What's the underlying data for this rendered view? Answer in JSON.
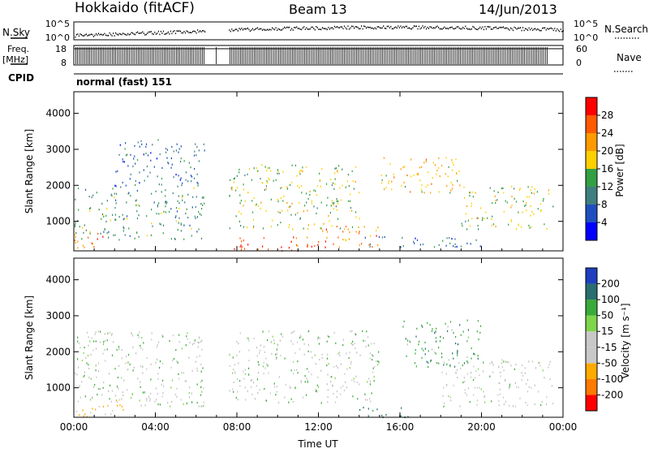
{
  "header": {
    "station": "Hokkaido (fitACF)",
    "beam": "Beam 13",
    "date": "14/Jun/2013"
  },
  "top_panels": {
    "nsky_label": "N.Sky",
    "nsky_ticks": [
      "10^5",
      "10^0"
    ],
    "nsearch_label": "N.Search",
    "nsearch_ticks": [
      "10^5",
      "10^0"
    ],
    "freq_label_line1": "Freq.",
    "freq_label_line2": "[MHz]",
    "freq_ticks": [
      "18",
      "8"
    ],
    "nave_label": "Nave",
    "nave_ticks": [
      "60",
      "0"
    ],
    "cpid_label": "CPID",
    "cpid_text": "normal (fast) 151"
  },
  "colors": {
    "power_scale": [
      "#0000ff",
      "#1f4fbf",
      "#3f7f7f",
      "#33a044",
      "#ffd000",
      "#ff9a00",
      "#ff5a00",
      "#ff0000"
    ],
    "velocity_scale": [
      "#ff0000",
      "#ff7a00",
      "#ffaa00",
      "#c8c8c8",
      "#c8c8c8",
      "#7ed64a",
      "#3aaa3a",
      "#2a6e70",
      "#1f3fbf"
    ],
    "ground_scatter": "#bfbfbf"
  },
  "chart_data": [
    {
      "type": "heatmap",
      "panel": "power",
      "ylabel": "Slant Range [km]",
      "xlabel": "",
      "x_tick_labels": [
        "00:00",
        "04:00",
        "08:00",
        "12:00",
        "16:00",
        "20:00",
        "00:00"
      ],
      "x_range_hours": [
        0,
        24
      ],
      "y_tick_labels": [
        "1000",
        "2000",
        "3000",
        "4000"
      ],
      "ylim": [
        180,
        4600
      ],
      "data_gap_hours": [
        [
          6.45,
          6.95
        ],
        [
          7.0,
          7.6
        ]
      ],
      "colorbar": {
        "label": "Power [dB]",
        "ticks": [
          "28",
          "24",
          "20",
          "16",
          "12",
          "8",
          "4"
        ]
      },
      "echo_bands": [
        {
          "t_start": 0.0,
          "t_end": 6.4,
          "r_low": 500,
          "r_high": 2000,
          "level_db": 12
        },
        {
          "t_start": 2.0,
          "t_end": 6.4,
          "r_low": 2000,
          "r_high": 3300,
          "level_db": 8
        },
        {
          "t_start": 0.0,
          "t_end": 1.5,
          "r_low": 200,
          "r_high": 700,
          "level_db": 24
        },
        {
          "t_start": 7.6,
          "t_end": 14.0,
          "r_low": 800,
          "r_high": 2600,
          "level_db": 16
        },
        {
          "t_start": 7.6,
          "t_end": 12.0,
          "r_low": 200,
          "r_high": 600,
          "level_db": 28
        },
        {
          "t_start": 12.0,
          "t_end": 15.0,
          "r_low": 300,
          "r_high": 900,
          "level_db": 24
        },
        {
          "t_start": 15.0,
          "t_end": 19.0,
          "r_low": 1800,
          "r_high": 2800,
          "level_db": 20
        },
        {
          "t_start": 19.0,
          "t_end": 23.5,
          "r_low": 800,
          "r_high": 2000,
          "level_db": 16
        },
        {
          "t_start": 14.0,
          "t_end": 20.0,
          "r_low": 300,
          "r_high": 600,
          "level_db": 8
        }
      ]
    },
    {
      "type": "heatmap",
      "panel": "velocity",
      "ylabel": "Slant Range [km]",
      "xlabel": "Time UT",
      "x_tick_labels": [
        "00:00",
        "04:00",
        "08:00",
        "12:00",
        "16:00",
        "20:00",
        "00:00"
      ],
      "x_range_hours": [
        0,
        24
      ],
      "y_tick_labels": [
        "1000",
        "2000",
        "3000",
        "4000"
      ],
      "ylim": [
        180,
        4600
      ],
      "colorbar": {
        "label": "Velocity [m s⁻¹]",
        "ticks": [
          "200",
          "100",
          "50",
          "15",
          "-15",
          "-50",
          "-100",
          "-200"
        ]
      },
      "echo_bands": [
        {
          "t_start": 0.0,
          "t_end": 6.4,
          "r_low": 500,
          "r_high": 2600,
          "velocity": 0
        },
        {
          "t_start": 0.0,
          "t_end": 2.5,
          "r_low": 200,
          "r_high": 700,
          "velocity": -60
        },
        {
          "t_start": 7.6,
          "t_end": 15.0,
          "r_low": 600,
          "r_high": 2600,
          "velocity": 0
        },
        {
          "t_start": 14.0,
          "t_end": 16.5,
          "r_low": 200,
          "r_high": 500,
          "velocity": 60
        },
        {
          "t_start": 16.0,
          "t_end": 20.0,
          "r_low": 1600,
          "r_high": 2900,
          "velocity": 40
        },
        {
          "t_start": 18.0,
          "t_end": 23.5,
          "r_low": 500,
          "r_high": 1800,
          "velocity": -10
        }
      ]
    }
  ]
}
